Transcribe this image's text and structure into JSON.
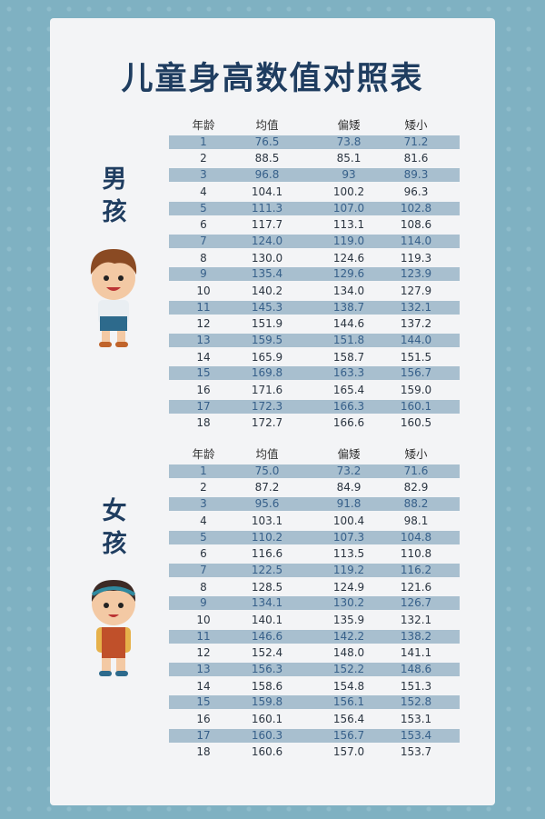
{
  "title": "儿童身高数值对照表",
  "columns": [
    "年龄",
    "均值",
    "偏矮",
    "矮小"
  ],
  "boys": {
    "label": [
      "男",
      "孩"
    ],
    "rows": [
      [
        "1",
        "76.5",
        "73.8",
        "71.2"
      ],
      [
        "2",
        "88.5",
        "85.1",
        "81.6"
      ],
      [
        "3",
        "96.8",
        "93",
        "89.3"
      ],
      [
        "4",
        "104.1",
        "100.2",
        "96.3"
      ],
      [
        "5",
        "111.3",
        "107.0",
        "102.8"
      ],
      [
        "6",
        "117.7",
        "113.1",
        "108.6"
      ],
      [
        "7",
        "124.0",
        "119.0",
        "114.0"
      ],
      [
        "8",
        "130.0",
        "124.6",
        "119.3"
      ],
      [
        "9",
        "135.4",
        "129.6",
        "123.9"
      ],
      [
        "10",
        "140.2",
        "134.0",
        "127.9"
      ],
      [
        "11",
        "145.3",
        "138.7",
        "132.1"
      ],
      [
        "12",
        "151.9",
        "144.6",
        "137.2"
      ],
      [
        "13",
        "159.5",
        "151.8",
        "144.0"
      ],
      [
        "14",
        "165.9",
        "158.7",
        "151.5"
      ],
      [
        "15",
        "169.8",
        "163.3",
        "156.7"
      ],
      [
        "16",
        "171.6",
        "165.4",
        "159.0"
      ],
      [
        "17",
        "172.3",
        "166.3",
        "160.1"
      ],
      [
        "18",
        "172.7",
        "166.6",
        "160.5"
      ]
    ]
  },
  "girls": {
    "label": [
      "女",
      "孩"
    ],
    "rows": [
      [
        "1",
        "75.0",
        "73.2",
        "71.6"
      ],
      [
        "2",
        "87.2",
        "84.9",
        "82.9"
      ],
      [
        "3",
        "95.6",
        "91.8",
        "88.2"
      ],
      [
        "4",
        "103.1",
        "100.4",
        "98.1"
      ],
      [
        "5",
        "110.2",
        "107.3",
        "104.8"
      ],
      [
        "6",
        "116.6",
        "113.5",
        "110.8"
      ],
      [
        "7",
        "122.5",
        "119.2",
        "116.2"
      ],
      [
        "8",
        "128.5",
        "124.9",
        "121.6"
      ],
      [
        "9",
        "134.1",
        "130.2",
        "126.7"
      ],
      [
        "10",
        "140.1",
        "135.9",
        "132.1"
      ],
      [
        "11",
        "146.6",
        "142.2",
        "138.2"
      ],
      [
        "12",
        "152.4",
        "148.0",
        "141.1"
      ],
      [
        "13",
        "156.3",
        "152.2",
        "148.6"
      ],
      [
        "14",
        "158.6",
        "154.8",
        "151.3"
      ],
      [
        "15",
        "159.8",
        "156.1",
        "152.8"
      ],
      [
        "16",
        "160.1",
        "156.4",
        "153.1"
      ],
      [
        "17",
        "160.3",
        "156.7",
        "153.4"
      ],
      [
        "18",
        "160.6",
        "157.0",
        "153.7"
      ]
    ]
  },
  "colors": {
    "background": "#7fb1c2",
    "title": "#1f3d60",
    "stripe": "#a8bfcf",
    "stripe_text": "#37608a"
  }
}
